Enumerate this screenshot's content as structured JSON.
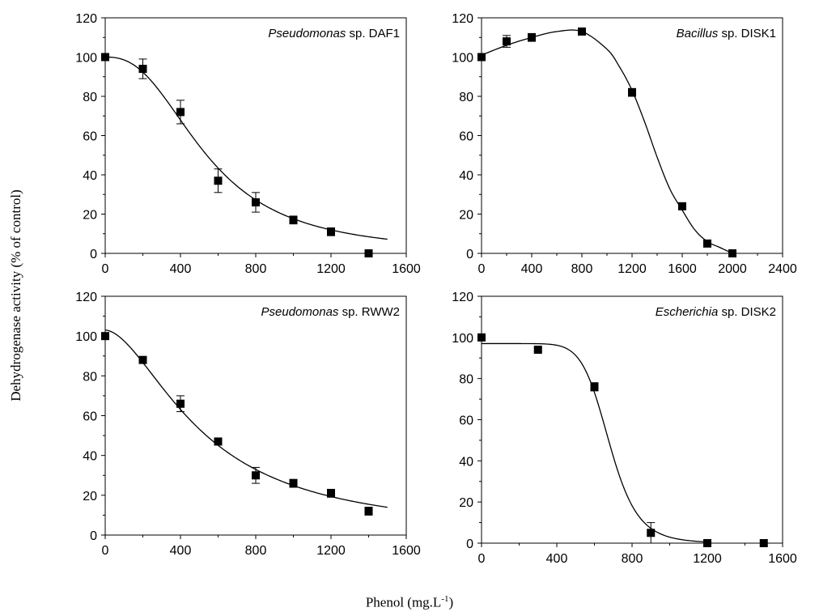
{
  "figure": {
    "ylabel": "Dehydrogenase activity (% of control)",
    "xlabel_main": "Phenol (mg.L",
    "xlabel_sup": "-1",
    "xlabel_end": ")"
  },
  "chart_data": [
    {
      "type": "scatter",
      "label_italic": "Pseudomonas",
      "label_rest": " sp. DAF1",
      "xlim": [
        0,
        1600
      ],
      "ylim": [
        0,
        120
      ],
      "xticks": [
        "0",
        "400",
        "800",
        "1200",
        "1600"
      ],
      "yticks": [
        "0",
        "20",
        "40",
        "60",
        "80",
        "100",
        "120"
      ],
      "x": [
        0,
        200,
        400,
        600,
        800,
        1000,
        1200,
        1400
      ],
      "y": [
        100,
        94,
        72,
        37,
        26,
        17,
        11,
        0
      ],
      "err": [
        0,
        5,
        6,
        6,
        5,
        2,
        2,
        1
      ],
      "fit": {
        "type": "logistic",
        "top": 100,
        "bottom": 0,
        "x50": 540,
        "slope": 2.5,
        "x_end": 1500
      }
    },
    {
      "type": "scatter",
      "label_italic": "Bacillus",
      "label_rest": " sp. DISK1",
      "xlim": [
        0,
        2400
      ],
      "ylim": [
        0,
        120
      ],
      "xticks": [
        "0",
        "400",
        "800",
        "1200",
        "1600",
        "2000",
        "2400"
      ],
      "yticks": [
        "0",
        "20",
        "40",
        "60",
        "80",
        "100",
        "120"
      ],
      "x": [
        0,
        200,
        400,
        800,
        1200,
        1600,
        1800,
        2000
      ],
      "y": [
        100,
        108,
        110,
        113,
        82,
        24,
        5,
        0
      ],
      "err": [
        0,
        3,
        2,
        1,
        2,
        1,
        1,
        0
      ],
      "fit": {
        "type": "bump",
        "points": [
          [
            0,
            101
          ],
          [
            200,
            106
          ],
          [
            400,
            110
          ],
          [
            600,
            113
          ],
          [
            800,
            113
          ],
          [
            1000,
            104
          ],
          [
            1100,
            95
          ],
          [
            1200,
            83
          ],
          [
            1300,
            67
          ],
          [
            1400,
            49
          ],
          [
            1500,
            33
          ],
          [
            1600,
            22
          ],
          [
            1700,
            12
          ],
          [
            1800,
            6
          ],
          [
            1900,
            3
          ],
          [
            2000,
            0
          ]
        ]
      }
    },
    {
      "type": "scatter",
      "label_italic": "Pseudomonas",
      "label_rest": " sp. RWW2",
      "xlim": [
        0,
        1600
      ],
      "ylim": [
        0,
        120
      ],
      "xticks": [
        "0",
        "400",
        "800",
        "1200",
        "1600"
      ],
      "yticks": [
        "0",
        "20",
        "40",
        "60",
        "80",
        "100",
        "120"
      ],
      "x": [
        0,
        200,
        400,
        600,
        800,
        1000,
        1200,
        1400
      ],
      "y": [
        100,
        88,
        66,
        47,
        30,
        26,
        21,
        12
      ],
      "err": [
        0,
        1,
        4,
        1,
        4,
        2,
        2,
        2
      ],
      "fit": {
        "type": "logistic",
        "top": 103,
        "bottom": 0,
        "x50": 520,
        "slope": 1.75,
        "x_end": 1500
      }
    },
    {
      "type": "scatter",
      "label_italic": "Escherichia",
      "label_rest": " sp. DISK2",
      "xlim": [
        0,
        1600
      ],
      "ylim": [
        0,
        120
      ],
      "xticks": [
        "0",
        "400",
        "800",
        "1200",
        "1600"
      ],
      "yticks": [
        "0",
        "20",
        "40",
        "60",
        "80",
        "100",
        "120"
      ],
      "x": [
        0,
        300,
        600,
        900,
        1200,
        1500
      ],
      "y": [
        100,
        94,
        76,
        5,
        0,
        0
      ],
      "err": [
        0,
        1,
        2,
        5,
        1,
        0
      ],
      "fit": {
        "type": "logistic",
        "top": 97,
        "bottom": 0,
        "x50": 680,
        "slope": 9,
        "x_end": 1200
      }
    }
  ]
}
